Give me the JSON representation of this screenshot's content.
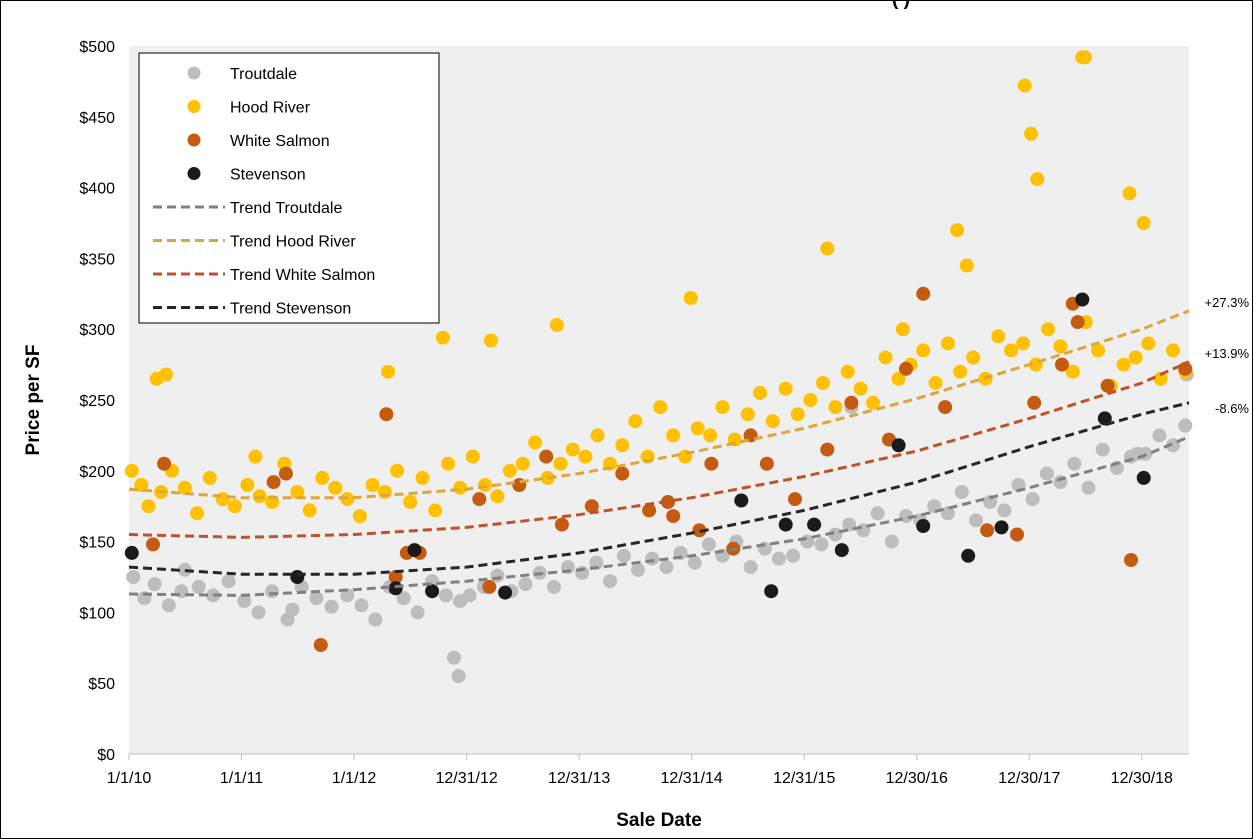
{
  "title_fragment": "(           )",
  "colors": {
    "troutdale": "#bdbdbd",
    "hood_river": "#ffc000",
    "white_salmon": "#c55a11",
    "stevenson": "#1a1a1a",
    "trend_troutdale": "#808080",
    "trend_hood_river": "#dba63a",
    "trend_white_salmon": "#c0522b",
    "trend_stevenson": "#262626",
    "plot_background": "#efefef"
  },
  "chart_data": {
    "type": "scatter",
    "xlabel": "Sale Date",
    "ylabel": "Price per SF",
    "x_ticks": [
      "1/1/10",
      "1/1/11",
      "1/1/12",
      "12/31/12",
      "12/31/13",
      "12/31/14",
      "12/31/15",
      "12/30/16",
      "12/30/17",
      "12/30/18"
    ],
    "x_range": [
      "1/1/10",
      "6/1/19"
    ],
    "y_ticks": [
      "$0",
      "$50",
      "$100",
      "$150",
      "$200",
      "$250",
      "$300",
      "$350",
      "$400",
      "$450",
      "$500"
    ],
    "ylim": [
      0,
      500
    ],
    "grid": "none",
    "legend_position": "top-left",
    "legend": [
      "Troutdale",
      "Hood River",
      "White Salmon",
      "Stevenson",
      "Trend Troutdale",
      "Trend Hood River",
      "Trend White Salmon",
      "Trend Stevenson"
    ],
    "series": [
      {
        "name": "Troutdale",
        "x": [
          "2010-01-15",
          "2010-02-20",
          "2010-03-25",
          "2010-05-10",
          "2010-06-20",
          "2010-08-15",
          "2010-10-01",
          "2010-11-20",
          "2011-01-10",
          "2011-02-25",
          "2011-04-10",
          "2011-05-30",
          "2011-07-15",
          "2011-09-01",
          "2011-10-20",
          "2011-12-10",
          "2012-01-25",
          "2012-03-10",
          "2012-04-25",
          "2012-06-10",
          "2012-07-25",
          "2012-09-10",
          "2012-10-25",
          "2012-12-10",
          "2013-01-10",
          "2013-02-25",
          "2013-04-10",
          "2013-05-25",
          "2013-07-10",
          "2013-08-25",
          "2013-10-10",
          "2013-11-25",
          "2014-01-10",
          "2014-02-25",
          "2014-04-10",
          "2014-05-25",
          "2014-07-10",
          "2014-08-25",
          "2014-10-10",
          "2014-11-25",
          "2015-01-10",
          "2015-02-25",
          "2015-04-10",
          "2015-05-25",
          "2015-07-10",
          "2015-08-25",
          "2015-10-10",
          "2015-11-25",
          "2016-01-10",
          "2016-02-25",
          "2016-04-10",
          "2016-05-25",
          "2016-07-10",
          "2016-08-25",
          "2016-10-10",
          "2016-11-25",
          "2017-01-10",
          "2017-02-25",
          "2017-04-10",
          "2017-05-25",
          "2017-07-10",
          "2017-08-25",
          "2017-10-10",
          "2017-11-25",
          "2018-01-10",
          "2018-02-25",
          "2018-04-10",
          "2018-05-25",
          "2018-07-10",
          "2018-08-25",
          "2018-10-10",
          "2018-11-25",
          "2019-01-10",
          "2019-02-25",
          "2019-04-10",
          "2019-05-20",
          "2010-07-01",
          "2011-06-15",
          "2012-11-20",
          "2012-12-05",
          "2016-06-01",
          "2018-12-15",
          "2019-05-25"
        ],
        "values": [
          125,
          110,
          120,
          105,
          115,
          118,
          112,
          122,
          108,
          100,
          115,
          95,
          118,
          110,
          104,
          112,
          105,
          95,
          118,
          110,
          100,
          122,
          112,
          108,
          112,
          118,
          126,
          115,
          120,
          128,
          118,
          132,
          128,
          135,
          122,
          140,
          130,
          138,
          132,
          142,
          135,
          148,
          140,
          150,
          132,
          145,
          138,
          140,
          150,
          148,
          155,
          162,
          158,
          170,
          150,
          168,
          165,
          175,
          170,
          185,
          165,
          178,
          172,
          190,
          180,
          198,
          192,
          205,
          188,
          215,
          202,
          210,
          212,
          225,
          218,
          232,
          130,
          102,
          68,
          55,
          245,
          212,
          268
        ]
      },
      {
        "name": "Hood River",
        "x": [
          "2010-01-10",
          "2010-02-10",
          "2010-03-05",
          "2010-04-15",
          "2010-05-20",
          "2010-07-01",
          "2010-08-10",
          "2010-09-20",
          "2010-11-01",
          "2010-12-10",
          "2011-01-20",
          "2011-03-01",
          "2011-04-10",
          "2011-05-20",
          "2011-07-01",
          "2011-08-10",
          "2011-09-20",
          "2011-11-01",
          "2011-12-10",
          "2012-01-20",
          "2012-03-01",
          "2012-04-10",
          "2012-05-20",
          "2012-07-01",
          "2012-08-10",
          "2012-09-20",
          "2012-11-01",
          "2012-12-10",
          "2013-01-20",
          "2013-03-01",
          "2013-04-10",
          "2013-05-20",
          "2013-07-01",
          "2013-08-10",
          "2013-09-20",
          "2013-11-01",
          "2013-12-10",
          "2014-01-20",
          "2014-03-01",
          "2014-04-10",
          "2014-05-20",
          "2014-07-01",
          "2014-08-10",
          "2014-09-20",
          "2014-11-01",
          "2014-12-10",
          "2015-01-20",
          "2015-03-01",
          "2015-04-10",
          "2015-05-20",
          "2015-07-01",
          "2015-08-10",
          "2015-09-20",
          "2015-11-01",
          "2015-12-10",
          "2016-01-20",
          "2016-03-01",
          "2016-04-10",
          "2016-05-20",
          "2016-07-01",
          "2016-08-10",
          "2016-09-20",
          "2016-11-01",
          "2016-12-10",
          "2017-01-20",
          "2017-03-01",
          "2017-04-10",
          "2017-05-20",
          "2017-07-01",
          "2017-08-10",
          "2017-09-20",
          "2017-11-01",
          "2017-12-10",
          "2018-01-20",
          "2018-03-01",
          "2018-04-10",
          "2018-05-20",
          "2018-07-01",
          "2018-08-10",
          "2018-09-20",
          "2018-11-01",
          "2018-12-10",
          "2019-01-20",
          "2019-03-01",
          "2019-04-10",
          "2019-05-20",
          "2010-04-01",
          "2010-05-01",
          "2011-02-15",
          "2012-04-20",
          "2012-10-15",
          "2013-03-20",
          "2013-10-20",
          "2014-12-28",
          "2016-03-15",
          "2016-11-15",
          "2017-05-10",
          "2017-06-10",
          "2017-12-15",
          "2018-01-05",
          "2018-01-25",
          "2018-06-20",
          "2018-06-28",
          "2018-11-20",
          "2019-01-05"
        ],
        "values": [
          200,
          190,
          175,
          185,
          200,
          188,
          170,
          195,
          180,
          175,
          190,
          182,
          178,
          205,
          185,
          172,
          195,
          188,
          180,
          168,
          190,
          185,
          200,
          178,
          195,
          172,
          205,
          188,
          210,
          190,
          182,
          200,
          205,
          220,
          195,
          205,
          215,
          210,
          225,
          205,
          218,
          235,
          210,
          245,
          225,
          210,
          230,
          225,
          245,
          222,
          240,
          255,
          235,
          258,
          240,
          250,
          262,
          245,
          270,
          258,
          248,
          280,
          265,
          275,
          285,
          262,
          290,
          270,
          280,
          265,
          295,
          285,
          290,
          275,
          300,
          288,
          270,
          305,
          285,
          260,
          275,
          280,
          290,
          265,
          285,
          270,
          265,
          268,
          210,
          270,
          294,
          292,
          303,
          322,
          357,
          300,
          370,
          345,
          472,
          438,
          406,
          492,
          492,
          396,
          375
        ]
      },
      {
        "name": "White Salmon",
        "x": [
          "2010-03-20",
          "2010-04-25",
          "2011-04-15",
          "2011-05-25",
          "2011-09-15",
          "2012-04-15",
          "2012-05-15",
          "2012-08-01",
          "2013-02-10",
          "2013-03-15",
          "2013-06-20",
          "2013-09-15",
          "2013-11-05",
          "2014-02-10",
          "2014-05-20",
          "2014-08-15",
          "2014-11-01",
          "2015-01-25",
          "2015-03-05",
          "2015-05-15",
          "2015-07-10",
          "2015-09-01",
          "2015-12-01",
          "2016-03-15",
          "2016-06-01",
          "2016-10-01",
          "2016-11-25",
          "2017-01-20",
          "2017-04-01",
          "2017-08-15",
          "2017-11-20",
          "2018-01-15",
          "2018-04-15",
          "2018-05-20",
          "2018-06-05",
          "2018-09-10",
          "2018-11-25",
          "2019-05-20",
          "2012-06-20",
          "2014-10-15"
        ],
        "values": [
          148,
          205,
          192,
          198,
          77,
          240,
          125,
          142,
          180,
          118,
          190,
          210,
          162,
          175,
          198,
          172,
          168,
          158,
          205,
          145,
          225,
          205,
          180,
          215,
          248,
          222,
          272,
          325,
          245,
          158,
          155,
          248,
          275,
          318,
          305,
          260,
          137,
          272,
          142,
          178
        ]
      },
      {
        "name": "Stevenson",
        "x": [
          "2010-01-10",
          "2011-07-01",
          "2012-05-15",
          "2012-07-15",
          "2012-09-10",
          "2013-05-05",
          "2015-06-10",
          "2015-09-15",
          "2015-11-01",
          "2016-02-01",
          "2016-05-01",
          "2016-11-01",
          "2017-01-20",
          "2017-06-15",
          "2017-10-01",
          "2018-06-20",
          "2018-09-01",
          "2019-01-05"
        ],
        "values": [
          142,
          125,
          117,
          144,
          115,
          114,
          179,
          115,
          162,
          162,
          144,
          218,
          161,
          140,
          160,
          321,
          237,
          195
        ]
      },
      {
        "name": "Trend Troutdale",
        "type": "line",
        "x": [
          "2010-01-01",
          "2011-01-01",
          "2012-01-01",
          "2012-12-31",
          "2013-12-31",
          "2014-12-31",
          "2015-12-31",
          "2016-12-30",
          "2017-12-30",
          "2018-12-30",
          "2019-06-01"
        ],
        "values": [
          113,
          112,
          116,
          122,
          130,
          140,
          152,
          168,
          188,
          210,
          224
        ]
      },
      {
        "name": "Trend Hood River",
        "type": "line",
        "x": [
          "2010-01-01",
          "2011-01-01",
          "2012-01-01",
          "2012-12-31",
          "2013-12-31",
          "2014-12-31",
          "2015-12-31",
          "2016-12-30",
          "2017-12-30",
          "2018-12-30",
          "2019-06-01"
        ],
        "values": [
          187,
          181,
          181,
          187,
          198,
          213,
          230,
          251,
          275,
          300,
          313
        ]
      },
      {
        "name": "Trend White Salmon",
        "type": "line",
        "x": [
          "2010-01-01",
          "2011-01-01",
          "2012-01-01",
          "2012-12-31",
          "2013-12-31",
          "2014-12-31",
          "2015-12-31",
          "2016-12-30",
          "2017-12-30",
          "2018-12-30",
          "2019-06-01"
        ],
        "values": [
          155,
          153,
          155,
          160,
          169,
          181,
          196,
          214,
          237,
          262,
          277
        ]
      },
      {
        "name": "Trend Stevenson",
        "type": "line",
        "x": [
          "2010-01-01",
          "2011-01-01",
          "2012-01-01",
          "2012-12-31",
          "2013-12-31",
          "2014-12-31",
          "2015-12-31",
          "2016-12-30",
          "2017-12-30",
          "2018-12-30",
          "2019-06-01"
        ],
        "values": [
          132,
          127,
          127,
          132,
          142,
          156,
          172,
          192,
          217,
          240,
          248
        ]
      }
    ],
    "annotations": [
      "+27.3%",
      "+13.9%",
      "-8.6%"
    ]
  }
}
